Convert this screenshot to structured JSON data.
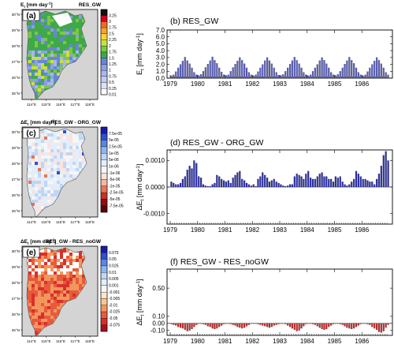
{
  "maps": [
    {
      "panel": "(a)",
      "title_left": "E",
      "title_left_sub": "t",
      "title_left_rest": " [mm day",
      "title_left_sup": "-1",
      "title_left_end": "]",
      "title_right": "RES_GW",
      "lat_labels": [
        "30°N",
        "29°N",
        "28°N",
        "27°N",
        "26°N",
        "25°N"
      ],
      "lon_labels": [
        "114°E",
        "115°E",
        "116°E",
        "117°E",
        "118°E"
      ],
      "colorbar_labels": [
        "3.25",
        "3",
        "2.75",
        "2.5",
        "2.25",
        "2",
        "1.75",
        "1.5",
        "1.25",
        "1",
        "0.75",
        "0.5",
        "0.25",
        "0.01"
      ],
      "colorbar_colors": [
        "#111111",
        "#d1001c",
        "#ee6a1f",
        "#f6a52a",
        "#fbd43b",
        "#c9e23a",
        "#7ac943",
        "#3fa94a",
        "#6a84d6",
        "#8aa1e2",
        "#a7b8ea",
        "#c0ccf0",
        "#dbe2f6",
        "#ffffff"
      ],
      "field_colors": [
        "#3fa94a",
        "#7ac943",
        "#6a84d6",
        "#8aa1e2",
        "#a7b8ea",
        "#c9e23a"
      ]
    },
    {
      "panel": "(c)",
      "title_left": "ΔE",
      "title_left_sub": "t",
      "title_left_rest": " [mm day",
      "title_left_sup": "-1",
      "title_left_end": "]",
      "title_right": "RES_GW - ORG_GW",
      "lat_labels": [
        "30°N",
        "29°N",
        "28°N",
        "27°N",
        "26°N",
        "25°N"
      ],
      "lon_labels": [
        "114°E",
        "115°E",
        "116°E",
        "117°E",
        "118°E"
      ],
      "colorbar_labels": [
        "7.5e-05",
        "5e-05",
        "2.5e-05",
        "1e-05",
        "5e-06",
        "1e-06",
        "-1e-06",
        "-5e-06",
        "-1e-05",
        "-2.5e-05",
        "-5e-05",
        "-7.5e-05"
      ],
      "colorbar_colors": [
        "#1a1aa8",
        "#2f4fd0",
        "#5a86e0",
        "#8fb5ee",
        "#bfd6f6",
        "#e2eefa",
        "#f6f6f6",
        "#fbe3dd",
        "#f4b8a6",
        "#e67659",
        "#cc2f24",
        "#8c0f14",
        "#5b050a"
      ],
      "field_colors": [
        "#e2eefa",
        "#f6f6f6",
        "#e2eefa",
        "#bfd6f6",
        "#fbe3dd"
      ]
    },
    {
      "panel": "(e)",
      "title_left": "ΔE",
      "title_left_sub": "t",
      "title_left_rest": " [mm day",
      "title_left_sup": "-1",
      "title_left_end": "]",
      "title_right": "RES_GW - RES_noGW",
      "lat_labels": [
        "30°N",
        "29°N",
        "28°N",
        "27°N",
        "26°N",
        "25°N"
      ],
      "lon_labels": [
        "114°E",
        "115°E",
        "116°E",
        "117°E",
        "118°E"
      ],
      "colorbar_labels": [
        "0.075",
        "0.05",
        "0.025",
        "0.01",
        "0.005",
        "0.001",
        "-0.001",
        "-0.005",
        "-0.01",
        "-0.025",
        "-0.05",
        "-0.075"
      ],
      "colorbar_colors": [
        "#1a1aa8",
        "#2f4fd0",
        "#5a86e0",
        "#8fb5ee",
        "#bfd6f6",
        "#e2eefa",
        "#f6f6f6",
        "#fbe7c8",
        "#f8c98f",
        "#f3965e",
        "#e85a3b",
        "#d8302a",
        "#a8111b"
      ],
      "field_colors": [
        "#e85a3b",
        "#f3965e",
        "#d8302a",
        "#f3965e",
        "#e85a3b"
      ]
    }
  ],
  "chart_data": [
    {
      "type": "bar",
      "panel": "(b)",
      "title": "RES_GW",
      "ylabel": "E",
      "ylabel_sub": "t",
      "ylabel_rest": " [mm day",
      "ylabel_sup": "-1",
      "ylabel_end": "]",
      "ylim": [
        0,
        7
      ],
      "yticks": [
        "0.0",
        "1.0",
        "2.0",
        "3.0",
        "4.0",
        "5.0",
        "6.0",
        "7.0"
      ],
      "ytick_values": [
        0,
        1,
        2,
        3,
        4,
        5,
        6,
        7
      ],
      "xticks": [
        "1979",
        "1980",
        "1981",
        "1982",
        "1983",
        "1984",
        "1985",
        "1986"
      ],
      "start": "1979-01",
      "color": "#5b5fb6",
      "values": [
        0.35,
        0.5,
        0.95,
        1.5,
        2.0,
        2.5,
        3.05,
        2.55,
        2.1,
        1.5,
        0.85,
        0.5,
        0.4,
        0.55,
        1.0,
        1.55,
        2.05,
        2.55,
        3.1,
        2.6,
        2.15,
        1.5,
        0.9,
        0.5,
        0.4,
        0.5,
        1.0,
        1.55,
        2.05,
        2.5,
        3.0,
        2.6,
        2.1,
        1.5,
        0.85,
        0.5,
        0.35,
        0.5,
        0.95,
        1.5,
        2.0,
        2.55,
        3.0,
        2.55,
        2.1,
        1.5,
        0.85,
        0.45,
        0.4,
        0.55,
        1.0,
        1.5,
        2.05,
        2.55,
        3.05,
        2.6,
        2.1,
        1.5,
        0.85,
        0.5,
        0.35,
        0.5,
        1.0,
        1.5,
        2.0,
        2.55,
        3.0,
        2.6,
        2.1,
        1.5,
        0.85,
        0.5,
        0.4,
        0.55,
        1.0,
        1.5,
        2.05,
        2.55,
        3.05,
        2.6,
        2.15,
        1.5,
        0.85,
        0.5,
        0.35,
        0.5,
        0.95,
        1.5,
        2.0,
        2.5,
        3.0,
        2.6,
        2.1,
        1.5,
        0.85,
        0.5
      ]
    },
    {
      "type": "bar",
      "panel": "(d)",
      "title": "RES_GW - ORG_GW",
      "ylabel": "ΔE",
      "ylabel_sub": "t",
      "ylabel_rest": " [mm day",
      "ylabel_sup": "-1",
      "ylabel_end": "]",
      "ylim": [
        -0.0014,
        0.0014
      ],
      "yticks": [
        "-0.0010",
        "0.0000",
        "0.0010"
      ],
      "ytick_values": [
        -0.001,
        0,
        0.001
      ],
      "xticks": [
        "1979",
        "1980",
        "1981",
        "1982",
        "1983",
        "1984",
        "1985",
        "1986"
      ],
      "start": "1979-01",
      "color": "#2b2fa6",
      "values": [
        0.0002,
        0.00015,
        0.0001,
        0.0001,
        0.00015,
        0.0003,
        0.0004,
        0.00065,
        0.0008,
        0.0007,
        0.001,
        0.0009,
        0.0004,
        0.00035,
        0.0001,
        5e-05,
        3e-05,
        3e-05,
        0.0001,
        0.00015,
        0.00045,
        0.0004,
        0.0003,
        0.00025,
        0.0002,
        0.00025,
        0.00015,
        0.00035,
        0.00045,
        0.00055,
        0.0006,
        0.0003,
        0.00025,
        0.00015,
        0.0001,
        5e-05,
        0.0001,
        3e-05,
        0.0003,
        0.0004,
        0.00055,
        0.00045,
        0.00035,
        0.0002,
        0.00025,
        0.0003,
        0.0002,
        0.00015,
        0.0001,
        5e-05,
        3e-05,
        5e-05,
        0.0001,
        0.0001,
        0.0004,
        0.0005,
        0.00045,
        0.0004,
        0.0003,
        0.0005,
        0.0006,
        0.00035,
        0.0003,
        0.0003,
        0.0004,
        0.0005,
        0.00055,
        0.0004,
        0.0004,
        0.0003,
        0.0003,
        0.0002,
        0.0004,
        0.00035,
        0.0004,
        0.0002,
        0.0001,
        5e-05,
        0.0001,
        0.0002,
        0.0003,
        0.0006,
        0.0005,
        0.0004,
        0.0003,
        0.0003,
        0.00025,
        0.0002,
        0.0002,
        0.0001,
        0.0003,
        0.0005,
        0.0008,
        0.0012,
        0.00135,
        0.001
      ]
    },
    {
      "type": "bar",
      "panel": "(f)",
      "title": "RES_GW - RES_noGW",
      "ylabel": "ΔE",
      "ylabel_sub": "t",
      "ylabel_rest": " [mm day",
      "ylabel_sup": "-1",
      "ylabel_end": "]",
      "ylim": [
        -0.17,
        0.77
      ],
      "yticks": [
        "-0.10",
        "0.00",
        "0.10",
        "0.50"
      ],
      "ytick_values": [
        -0.1,
        0,
        0.1,
        0.5
      ],
      "xticks": [
        "1979",
        "1980",
        "1981",
        "1982",
        "1983",
        "1984",
        "1985",
        "1986"
      ],
      "start": "1979-01",
      "color": "#bf2b2b",
      "values": [
        -0.01,
        -0.02,
        -0.03,
        -0.05,
        -0.06,
        -0.07,
        -0.09,
        -0.11,
        -0.1,
        -0.08,
        -0.05,
        -0.02,
        -0.005,
        -0.005,
        -0.01,
        -0.02,
        -0.04,
        -0.05,
        -0.07,
        -0.08,
        -0.07,
        -0.05,
        -0.03,
        -0.01,
        -0.005,
        -0.005,
        -0.01,
        -0.02,
        -0.03,
        -0.05,
        -0.06,
        -0.07,
        -0.06,
        -0.04,
        -0.02,
        -0.005,
        -0.005,
        -0.005,
        -0.01,
        -0.02,
        -0.03,
        -0.04,
        -0.05,
        -0.06,
        -0.05,
        -0.03,
        -0.02,
        -0.01,
        -0.005,
        -0.005,
        -0.01,
        -0.03,
        -0.05,
        -0.07,
        -0.09,
        -0.11,
        -0.1,
        -0.07,
        -0.04,
        -0.01,
        -0.005,
        -0.005,
        -0.01,
        -0.02,
        -0.04,
        -0.06,
        -0.08,
        -0.09,
        -0.08,
        -0.05,
        -0.03,
        -0.01,
        -0.005,
        -0.005,
        -0.01,
        -0.02,
        -0.04,
        -0.06,
        -0.07,
        -0.08,
        -0.07,
        -0.05,
        -0.03,
        -0.01,
        -0.005,
        -0.005,
        -0.01,
        -0.02,
        -0.05,
        -0.07,
        -0.09,
        -0.12,
        -0.13,
        -0.11,
        -0.06,
        -0.02
      ]
    }
  ]
}
